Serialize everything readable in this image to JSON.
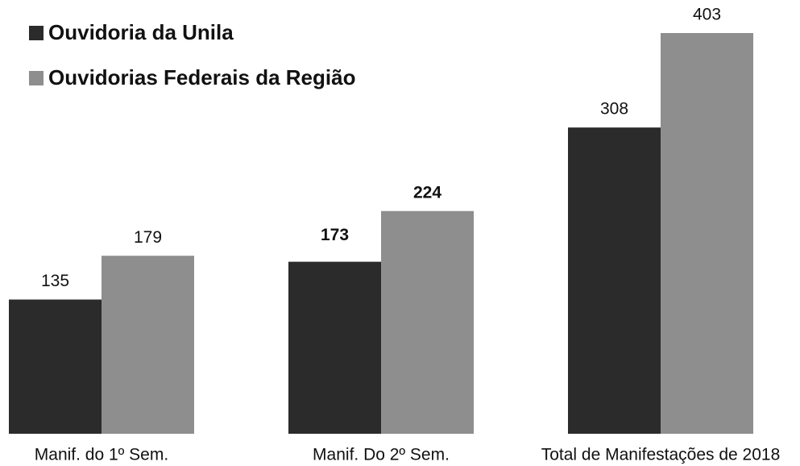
{
  "chart_data": {
    "type": "bar",
    "categories": [
      "Manif. do 1º Sem.",
      "Manif. Do 2º Sem.",
      "Total de Manifestações de 2018"
    ],
    "series": [
      {
        "name": "Ouvidoria da Unila",
        "color": "#2b2b2b",
        "values": [
          135,
          173,
          308
        ]
      },
      {
        "name": "Ouvidorias Federais da Região",
        "color": "#8e8e8e",
        "values": [
          179,
          224,
          403
        ]
      }
    ],
    "legend": "top-left"
  }
}
